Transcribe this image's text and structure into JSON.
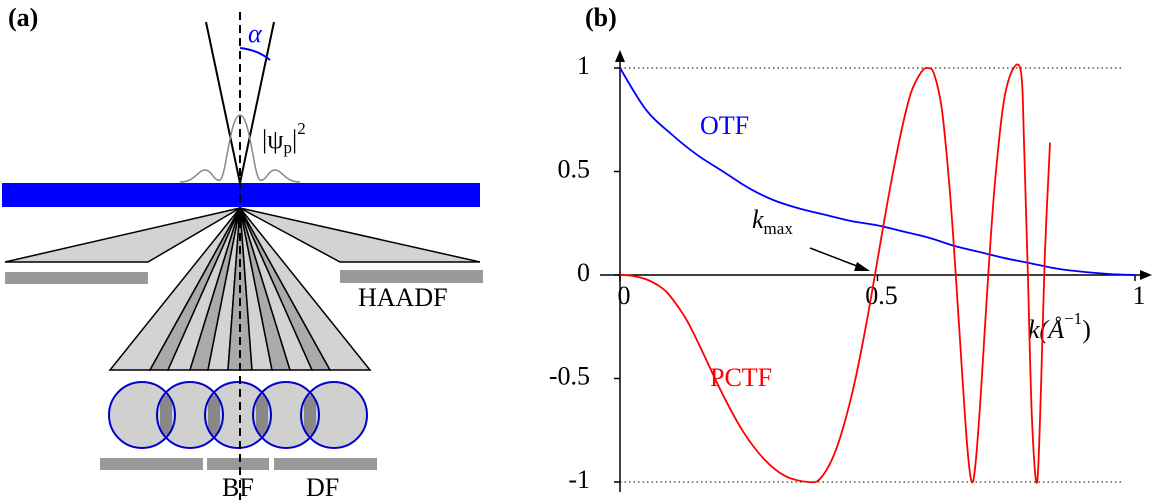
{
  "panel_a": {
    "label": "(a)",
    "alpha": "α",
    "probe": {
      "base": "|ψ",
      "sub": "p",
      "close": "|",
      "sup": "2"
    },
    "detectors": {
      "haadf": "HAADF",
      "bf": "BF",
      "df": "DF"
    }
  },
  "chart_data": {
    "type": "line",
    "panel_label": "(b)",
    "xlim": [
      0,
      1
    ],
    "ylim": [
      -1,
      1
    ],
    "xticks": [
      0,
      0.5,
      1
    ],
    "yticks": [
      -1,
      -0.5,
      0,
      0.5,
      1
    ],
    "reference_lines": [
      1,
      -1
    ],
    "x_label": {
      "base": "k(Å",
      "sup": "−1",
      "close": ")"
    },
    "annotation": {
      "base": "k",
      "sub": "max"
    },
    "series": [
      {
        "name": "OTF",
        "color": "#0000ff",
        "x": [
          0,
          0.05,
          0.1,
          0.15,
          0.2,
          0.25,
          0.3,
          0.35,
          0.4,
          0.45,
          0.5,
          0.55,
          0.6,
          0.65,
          0.7,
          0.75,
          0.8,
          0.85,
          0.9,
          0.95,
          1
        ],
        "values": [
          1,
          0.8,
          0.68,
          0.58,
          0.5,
          0.42,
          0.36,
          0.32,
          0.29,
          0.26,
          0.24,
          0.21,
          0.18,
          0.14,
          0.11,
          0.08,
          0.055,
          0.03,
          0.015,
          0.005,
          0
        ]
      },
      {
        "name": "PCTF",
        "color": "#ff0000",
        "x": [
          0,
          0.02,
          0.05,
          0.08,
          0.1,
          0.13,
          0.16,
          0.2,
          0.24,
          0.28,
          0.32,
          0.365,
          0.39,
          0.42,
          0.45,
          0.475,
          0.495,
          0.52,
          0.545,
          0.565,
          0.585,
          0.598,
          0.61,
          0.625,
          0.64,
          0.652,
          0.665,
          0.675,
          0.683,
          0.69,
          0.7,
          0.715,
          0.73,
          0.75,
          0.777,
          0.785,
          0.792,
          0.8,
          0.81,
          0.818,
          0.825,
          0.835
        ],
        "values": [
          0,
          -0.003,
          -0.02,
          -0.06,
          -0.11,
          -0.22,
          -0.37,
          -0.58,
          -0.76,
          -0.89,
          -0.97,
          -1,
          -0.98,
          -0.84,
          -0.58,
          -0.28,
          0,
          0.36,
          0.68,
          0.88,
          0.98,
          1,
          0.97,
          0.8,
          0.42,
          0,
          -0.5,
          -0.85,
          -1,
          -0.92,
          -0.6,
          0,
          0.5,
          0.9,
          1,
          0.6,
          0,
          -0.7,
          -1,
          -0.5,
          0.1,
          0.64
        ]
      }
    ]
  }
}
